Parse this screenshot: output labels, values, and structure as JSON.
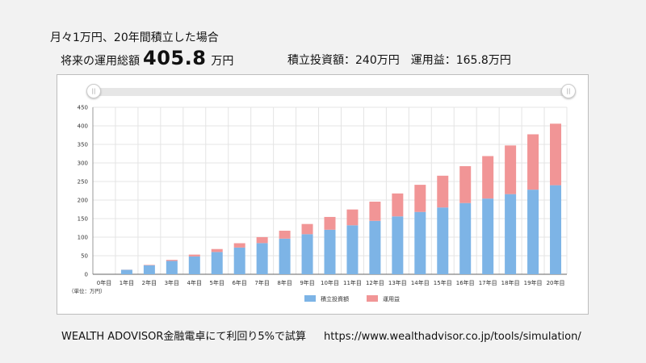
{
  "header": {
    "title": "月々1万円、20年間積立した場合",
    "total_label": "将来の運用総額",
    "total_value": "405.8",
    "total_unit": "万円",
    "contribution_text": "積立投資額：240万円",
    "gain_text": "運用益：165.8万円"
  },
  "footer": {
    "note": "WEALTH ADOVISOR金融電卓にて利回り5%で試算",
    "url": "https://www.wealthadvisor.co.jp/tools/simulation/"
  },
  "colors": {
    "contribution": "#7db4e6",
    "gain": "#f19596",
    "grid": "#e4e4e4"
  },
  "chart_data": {
    "type": "bar",
    "stacked": true,
    "categories": [
      "0年目",
      "1年目",
      "2年目",
      "3年目",
      "4年目",
      "5年目",
      "6年目",
      "7年目",
      "8年目",
      "9年目",
      "10年目",
      "11年目",
      "12年目",
      "13年目",
      "14年目",
      "15年目",
      "16年目",
      "17年目",
      "18年目",
      "19年目",
      "20年目"
    ],
    "series": [
      {
        "name": "積立投資額",
        "values": [
          0,
          12,
          24,
          36,
          48,
          60,
          72,
          84,
          96,
          108,
          120,
          132,
          144,
          156,
          168,
          180,
          192,
          204,
          216,
          228,
          240
        ]
      },
      {
        "name": "運用益",
        "values": [
          0,
          0.3,
          1.2,
          2.8,
          5.0,
          8.0,
          11.7,
          16.1,
          21.4,
          27.5,
          34.5,
          42.6,
          51.7,
          61.8,
          73.1,
          85.6,
          99.4,
          114.5,
          131.1,
          149.2,
          165.8
        ]
      }
    ],
    "y_ticks": [
      0,
      50,
      100,
      150,
      200,
      250,
      300,
      350,
      400,
      450
    ],
    "ylim": [
      0,
      450
    ],
    "unit_label": "（単位：万円）",
    "grid": true,
    "legend_position": "bottom"
  }
}
